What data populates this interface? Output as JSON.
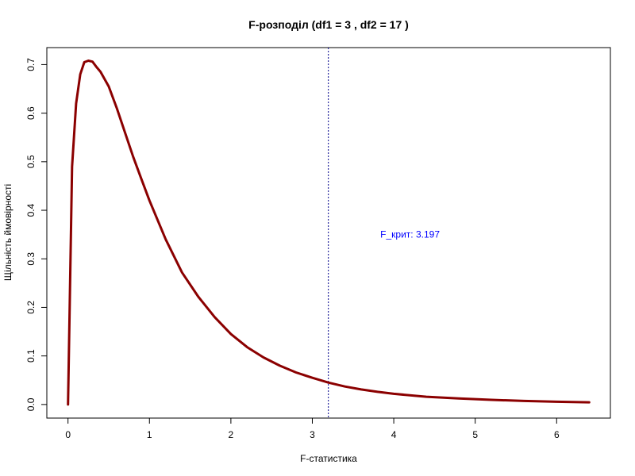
{
  "chart_data": {
    "type": "line",
    "title": "F-розподіл (df1 = 3 , df2 = 17 )",
    "xlabel": "F-статистика",
    "ylabel": "Щільність ймовірності",
    "xlim": [
      -0.26,
      6.66
    ],
    "ylim": [
      -0.028,
      0.735
    ],
    "x_ticks": [
      0,
      1,
      2,
      3,
      4,
      5,
      6
    ],
    "y_ticks": [
      0.0,
      0.1,
      0.2,
      0.3,
      0.4,
      0.5,
      0.6,
      0.7
    ],
    "x_tick_labels": [
      "0",
      "1",
      "2",
      "3",
      "4",
      "5",
      "6"
    ],
    "y_tick_labels": [
      "0.0",
      "0.1",
      "0.2",
      "0.3",
      "0.4",
      "0.5",
      "0.6",
      "0.7"
    ],
    "grid": false,
    "series": [
      {
        "color": "#8b0000",
        "x": [
          0,
          0.05,
          0.1,
          0.15,
          0.2,
          0.25,
          0.3,
          0.35,
          0.4,
          0.5,
          0.6,
          0.7,
          0.8,
          0.9,
          1.0,
          1.2,
          1.4,
          1.6,
          1.8,
          2.0,
          2.2,
          2.4,
          2.6,
          2.8,
          3.0,
          3.2,
          3.4,
          3.6,
          3.8,
          4.0,
          4.4,
          4.8,
          5.2,
          5.6,
          6.0,
          6.4
        ],
        "y": [
          0.0,
          0.49,
          0.62,
          0.68,
          0.705,
          0.708,
          0.706,
          0.695,
          0.685,
          0.655,
          0.61,
          0.56,
          0.51,
          0.465,
          0.42,
          0.34,
          0.272,
          0.222,
          0.18,
          0.145,
          0.118,
          0.097,
          0.08,
          0.066,
          0.055,
          0.045,
          0.037,
          0.031,
          0.026,
          0.022,
          0.016,
          0.0125,
          0.0095,
          0.0073,
          0.0057,
          0.0045
        ]
      }
    ],
    "critical_line": {
      "x": 3.197,
      "color": "#00008b"
    },
    "annotation": {
      "text": "F_крит: 3.197",
      "x": 4.2,
      "y": 0.35,
      "color": "#0000ff"
    }
  }
}
